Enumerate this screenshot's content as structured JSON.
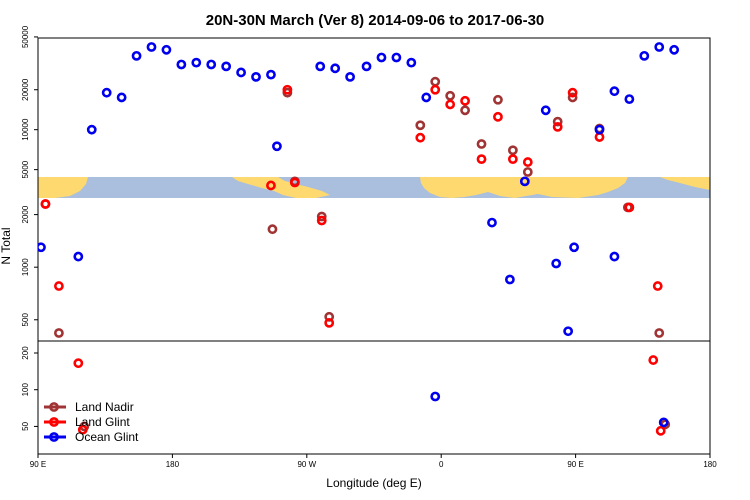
{
  "chart_data": {
    "type": "scatter",
    "title": "20N-30N March (Ver 8)   2014-09-06 to 2017-06-30",
    "xlabel": "Longitude (deg E)",
    "ylabel": "N Total",
    "x_ticks": [
      {
        "value": 90,
        "label": "90 E"
      },
      {
        "value": 180,
        "label": "180"
      },
      {
        "value": 270,
        "label": "90 W"
      },
      {
        "value": 360,
        "label": "0"
      },
      {
        "value": 450,
        "label": "90 E"
      },
      {
        "value": 540,
        "label": "180"
      }
    ],
    "xlim": [
      90,
      540
    ],
    "log_scale_y": true,
    "panels": [
      {
        "name": "top",
        "ylim": [
          4000,
          60000
        ],
        "y_ticks": [
          5000,
          10000,
          20000,
          50000
        ]
      },
      {
        "name": "middle",
        "ylim": [
          300,
          3500
        ],
        "y_ticks": [
          500,
          1000,
          2000
        ]
      },
      {
        "name": "bottom",
        "ylim": [
          38,
          250
        ],
        "y_ticks": [
          50,
          100,
          200
        ]
      }
    ],
    "legend": {
      "position": "bottom-left"
    },
    "series": [
      {
        "name": "Land Nadir",
        "color": "#a03434",
        "points": [
          [
            95,
            2300
          ],
          [
            104,
            420
          ],
          [
            121,
            50
          ],
          [
            247,
            1650
          ],
          [
            257,
            19000
          ],
          [
            262,
            3100
          ],
          [
            280,
            1950
          ],
          [
            285,
            520
          ],
          [
            346,
            10800
          ],
          [
            356,
            23000
          ],
          [
            366,
            18000
          ],
          [
            376,
            14000
          ],
          [
            387,
            7800
          ],
          [
            398,
            16800
          ],
          [
            408,
            7000
          ],
          [
            418,
            4800
          ],
          [
            438,
            11500
          ],
          [
            448,
            17500
          ],
          [
            466,
            10200
          ],
          [
            485,
            2200
          ],
          [
            506,
            420
          ],
          [
            510,
            52
          ]
        ]
      },
      {
        "name": "Land Glint",
        "color": "#ff0000",
        "points": [
          [
            95,
            2300
          ],
          [
            104,
            780
          ],
          [
            117,
            165
          ],
          [
            120,
            47
          ],
          [
            246,
            3800
          ],
          [
            257,
            20000
          ],
          [
            262,
            4000
          ],
          [
            280,
            1850
          ],
          [
            285,
            480
          ],
          [
            346,
            8700
          ],
          [
            356,
            20000
          ],
          [
            366,
            15500
          ],
          [
            376,
            16500
          ],
          [
            387,
            6000
          ],
          [
            398,
            12500
          ],
          [
            408,
            6000
          ],
          [
            418,
            5700
          ],
          [
            438,
            10500
          ],
          [
            448,
            19000
          ],
          [
            466,
            8800
          ],
          [
            486,
            2200
          ],
          [
            505,
            780
          ],
          [
            502,
            175
          ],
          [
            507,
            46
          ]
        ]
      },
      {
        "name": "Ocean Glint",
        "color": "#0000ee",
        "points": [
          [
            92,
            1300
          ],
          [
            117,
            1150
          ],
          [
            126,
            10000
          ],
          [
            136,
            19000
          ],
          [
            146,
            17500
          ],
          [
            156,
            36000
          ],
          [
            166,
            42000
          ],
          [
            176,
            40000
          ],
          [
            186,
            31000
          ],
          [
            196,
            32000
          ],
          [
            206,
            31000
          ],
          [
            216,
            30000
          ],
          [
            226,
            27000
          ],
          [
            236,
            25000
          ],
          [
            246,
            26000
          ],
          [
            250,
            7500
          ],
          [
            279,
            30000
          ],
          [
            289,
            29000
          ],
          [
            299,
            25000
          ],
          [
            310,
            30000
          ],
          [
            320,
            35000
          ],
          [
            330,
            35000
          ],
          [
            340,
            32000
          ],
          [
            350,
            17500
          ],
          [
            356,
            88
          ],
          [
            394,
            1800
          ],
          [
            406,
            850
          ],
          [
            416,
            3100
          ],
          [
            430,
            14000
          ],
          [
            437,
            1050
          ],
          [
            445,
            430
          ],
          [
            449,
            1300
          ],
          [
            476,
            1150
          ],
          [
            509,
            54
          ],
          [
            466,
            10000
          ],
          [
            476,
            19500
          ],
          [
            486,
            17000
          ],
          [
            496,
            36000
          ],
          [
            506,
            42000
          ],
          [
            516,
            40000
          ]
        ]
      }
    ]
  }
}
